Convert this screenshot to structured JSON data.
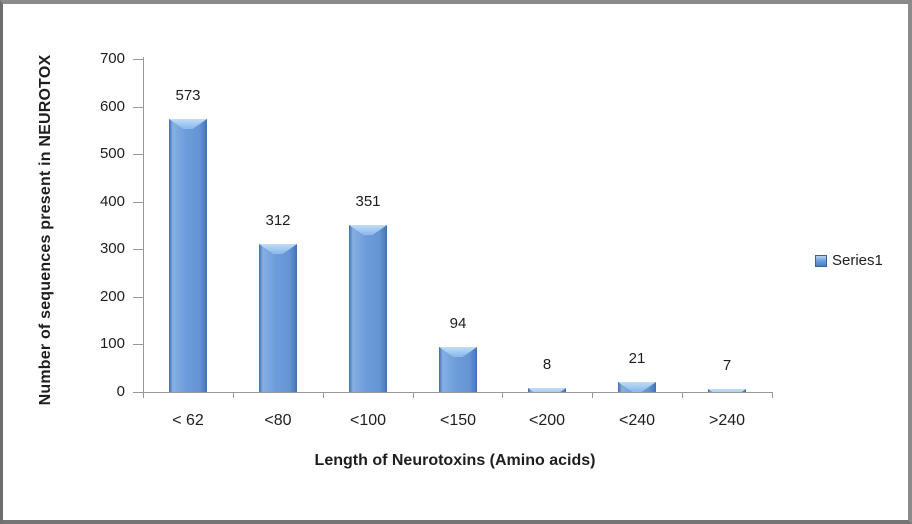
{
  "chart_data": {
    "type": "bar",
    "title": "",
    "categories": [
      "< 62",
      "<80",
      "<100",
      "<150",
      "<200",
      "<240",
      ">240"
    ],
    "values": [
      573,
      312,
      351,
      94,
      8,
      21,
      7
    ],
    "data_labels": [
      "573",
      "312",
      "351",
      "94",
      "8",
      "21",
      "7"
    ],
    "xlabel": "Length of Neurotoxins (Amino acids)",
    "ylabel": "Number of sequences present in NEUROTOX",
    "ylim": [
      0,
      700
    ],
    "yticks": [
      0,
      100,
      200,
      300,
      400,
      500,
      600,
      700
    ],
    "grid": false,
    "legend_position": "right",
    "series": [
      {
        "name": "Series1",
        "values": [
          573,
          312,
          351,
          94,
          8,
          21,
          7
        ]
      }
    ],
    "colors": {
      "bar": "#6C9CD9",
      "bar_edge": "#4E7FBF",
      "bar_highlight": "#C2DDF6",
      "axis": "#989898",
      "text": "#1E1E1E",
      "frame_border": "#8A8A8A",
      "background": "#FFFFFF"
    }
  }
}
